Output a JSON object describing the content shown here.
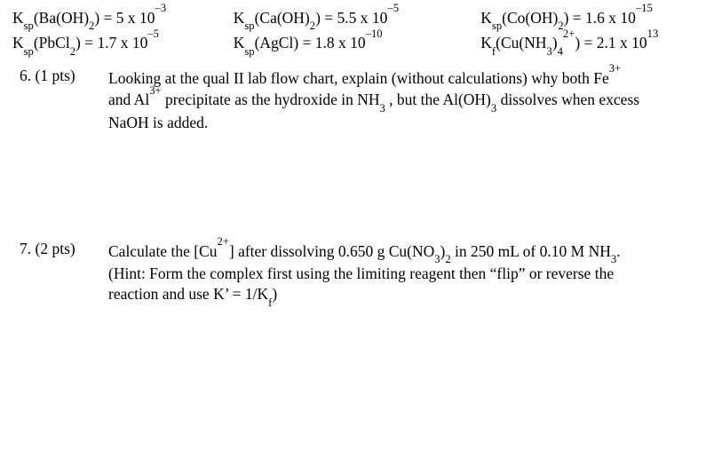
{
  "constants": {
    "row1": {
      "c1": {
        "label": "K",
        "sub1": "sp",
        "formula_open": "(Ba(OH)",
        "sub2": "2",
        "formula_close": ") = 5 x 10",
        "exp": "–3"
      },
      "c2": {
        "label": "K",
        "sub1": "sp",
        "formula_open": "(Ca(OH)",
        "sub2": "2",
        "formula_close": ") = 5.5 x 10",
        "exp": "–5"
      },
      "c3": {
        "label": "K",
        "sub1": "sp",
        "formula_open": "(Co(OH)",
        "sub2": "2",
        "formula_close": ") = 1.6 x 10",
        "exp": "–15"
      }
    },
    "row2": {
      "c1": {
        "label": "K",
        "sub1": "sp",
        "formula_open": "(PbCl",
        "sub2": "2",
        "formula_close": ") = 1.7 x 10",
        "exp": "–5"
      },
      "c2": {
        "label": "K",
        "sub1": "sp",
        "formula_open": "(AgCl) = 1.8 x 10",
        "exp": "–10"
      },
      "c3": {
        "label": "K",
        "sub1": "f",
        "formula_open": "(Cu(NH",
        "sub2": "3",
        "formula_mid": ")",
        "sub3": "4",
        "sup3": "2+",
        "formula_close": ") = 2.1 x 10",
        "exp": "13"
      }
    }
  },
  "q6": {
    "number": "6. (1 pts)",
    "line1a": "Looking at the qual II lab flow chart, explain (without calculations) why both Fe",
    "line1sup": "3+",
    "line2a": "and Al",
    "line2sup": "3+",
    "line2b": " precipitate as the hydroxide in NH",
    "line2sub": "3",
    "line2c": " , but the Al(OH)",
    "line2sub2": "3",
    "line2d": " dissolves when excess",
    "line3": "NaOH is added."
  },
  "q7": {
    "number": "7.  (2 pts)",
    "line1a": "Calculate the [Cu",
    "line1sup": "2+",
    "line1b": "] after dissolving 0.650 g Cu(NO",
    "line1sub": "3",
    "line1c": ")",
    "line1sub2": "2",
    "line1d": " in 250 mL of 0.10 M NH",
    "line1sub3": "3",
    "line1e": ".",
    "line2": "(Hint:  Form the complex first using the limiting reagent then “flip” or reverse the",
    "line3a": "reaction and use K’ = 1/K",
    "line3sub": "f",
    "line3b": ")"
  }
}
